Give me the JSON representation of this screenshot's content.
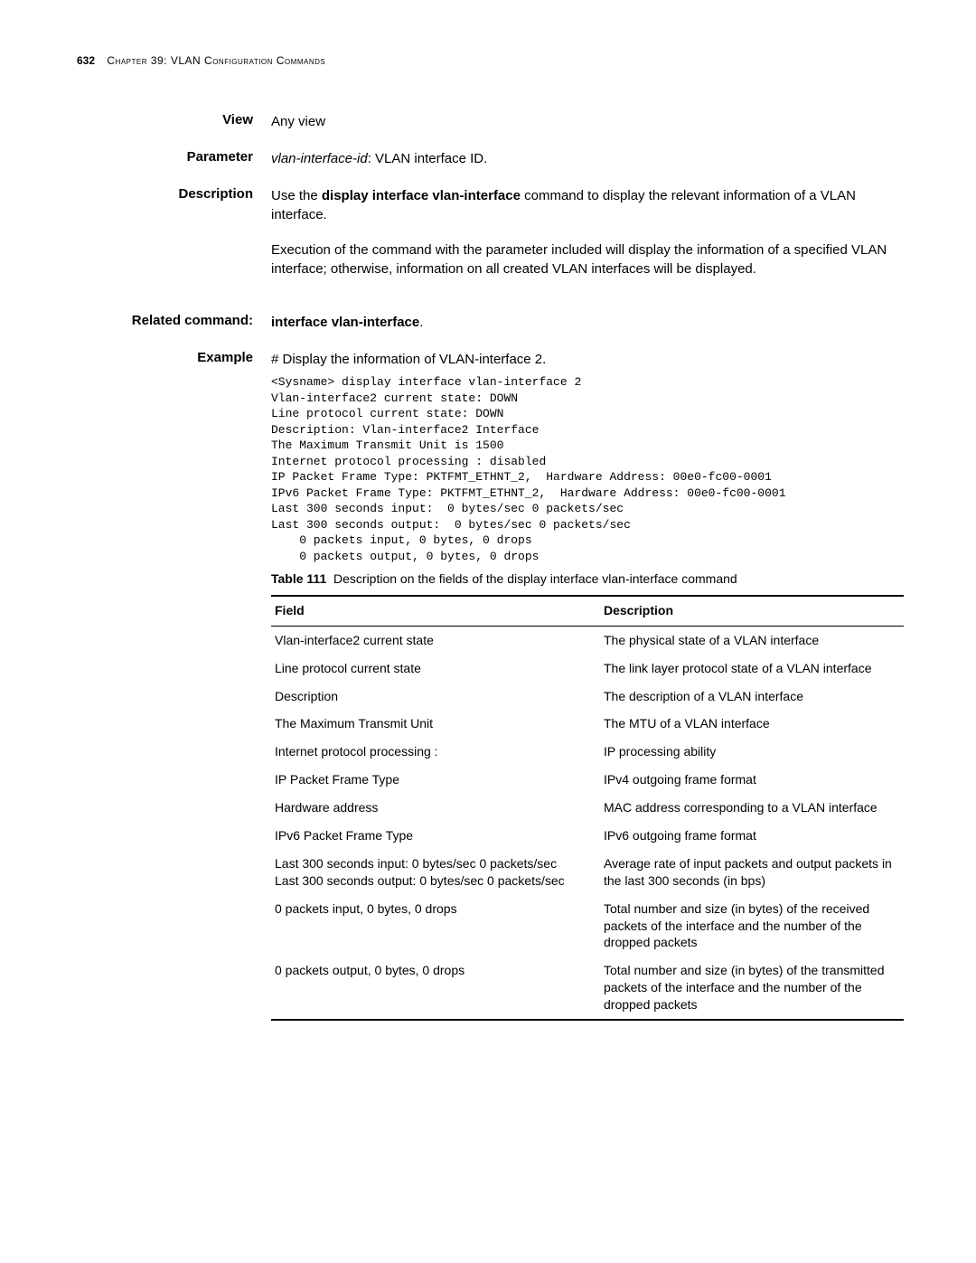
{
  "header": {
    "page_number": "632",
    "chapter_text": "Chapter 39: VLAN Configuration Commands"
  },
  "sections": {
    "view": {
      "label": "View",
      "text": "Any view"
    },
    "parameter": {
      "label": "Parameter",
      "param_name": "vlan-interface-id",
      "param_desc": ": VLAN interface ID."
    },
    "description": {
      "label": "Description",
      "lead_in": "Use the ",
      "command": "display interface vlan-interface",
      "after": " command to display the relevant information of a VLAN interface.",
      "para2": "Execution of the command with the parameter included will display the information of a specified VLAN interface; otherwise, information on all created VLAN interfaces will be displayed."
    },
    "related": {
      "label": "Related command:",
      "cmd": "interface vlan-interface",
      "period": "."
    },
    "example": {
      "label": "Example",
      "intro": "# Display the information of VLAN-interface 2.",
      "cli": "<Sysname> display interface vlan-interface 2\nVlan-interface2 current state: DOWN\nLine protocol current state: DOWN\nDescription: Vlan-interface2 Interface\nThe Maximum Transmit Unit is 1500\nInternet protocol processing : disabled\nIP Packet Frame Type: PKTFMT_ETHNT_2,  Hardware Address: 00e0-fc00-0001\nIPv6 Packet Frame Type: PKTFMT_ETHNT_2,  Hardware Address: 00e0-fc00-0001\nLast 300 seconds input:  0 bytes/sec 0 packets/sec\nLast 300 seconds output:  0 bytes/sec 0 packets/sec\n    0 packets input, 0 bytes, 0 drops\n    0 packets output, 0 bytes, 0 drops"
    }
  },
  "table": {
    "caption_label": "Table 111",
    "caption_text": "Description on the fields of the display interface vlan-interface command",
    "header_field": "Field",
    "header_desc": "Description",
    "rows": [
      {
        "field": "Vlan-interface2 current state",
        "desc": "The physical state of a VLAN interface"
      },
      {
        "field": "Line protocol current state",
        "desc": "The link layer protocol state of a VLAN interface"
      },
      {
        "field": "Description",
        "desc": "The description of a VLAN interface"
      },
      {
        "field": "The Maximum Transmit Unit",
        "desc": "The MTU of a VLAN interface"
      },
      {
        "field": "Internet protocol processing :",
        "desc": "IP processing ability"
      },
      {
        "field": "IP Packet Frame Type",
        "desc": "IPv4 outgoing frame format"
      },
      {
        "field": "Hardware address",
        "desc": "MAC address corresponding to a VLAN interface"
      },
      {
        "field": "IPv6 Packet Frame Type",
        "desc": "IPv6 outgoing frame format"
      },
      {
        "field": "Last 300 seconds input: 0 bytes/sec 0 packets/sec\nLast 300 seconds output: 0 bytes/sec 0 packets/sec",
        "desc": "Average rate of input packets and output packets in the last 300 seconds (in bps)"
      },
      {
        "field": "0 packets input, 0 bytes, 0 drops",
        "desc": "Total number and size (in bytes) of the received packets of the interface and the number of the dropped packets"
      },
      {
        "field": "0 packets output, 0 bytes, 0 drops",
        "desc": "Total number and size (in bytes) of the transmitted packets of the interface and the number of the dropped packets"
      }
    ]
  }
}
